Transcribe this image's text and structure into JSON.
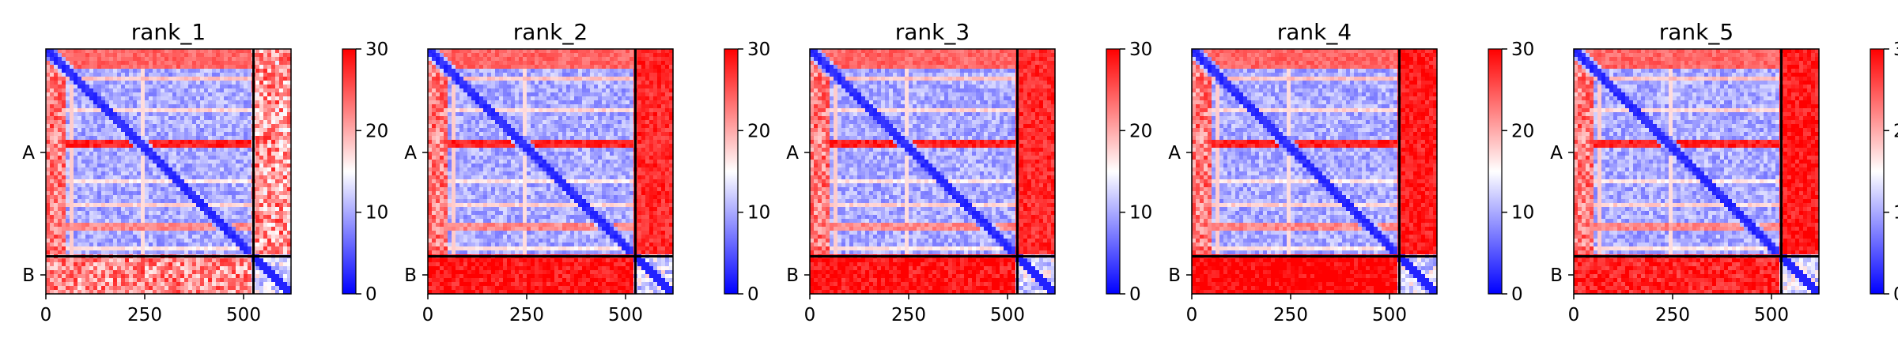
{
  "chart_data": {
    "type": "heatmap",
    "colormap": {
      "low": "#0000ff",
      "mid": "#ffffff",
      "high": "#ff0000"
    },
    "color_range": [
      0,
      30
    ],
    "colorbar_ticks": [
      "0",
      "10",
      "20",
      "30"
    ],
    "axis_range": [
      0,
      620
    ],
    "x_ticks": [
      {
        "value": 0,
        "label": "0"
      },
      {
        "value": 250,
        "label": "250"
      },
      {
        "value": 500,
        "label": "500"
      }
    ],
    "chain_boundary": 525,
    "chains": [
      {
        "label": "A",
        "center": 262
      },
      {
        "label": "B",
        "center": 572
      }
    ],
    "panels": [
      {
        "title": "rank_1",
        "offdiag_level": 8,
        "chain_b_level": 20
      },
      {
        "title": "rank_2",
        "offdiag_level": 28,
        "chain_b_level": 10
      },
      {
        "title": "rank_3",
        "offdiag_level": 28,
        "chain_b_level": 10
      },
      {
        "title": "rank_4",
        "offdiag_level": 29,
        "chain_b_level": 11
      },
      {
        "title": "rank_5",
        "offdiag_level": 29,
        "chain_b_level": 9
      }
    ]
  }
}
